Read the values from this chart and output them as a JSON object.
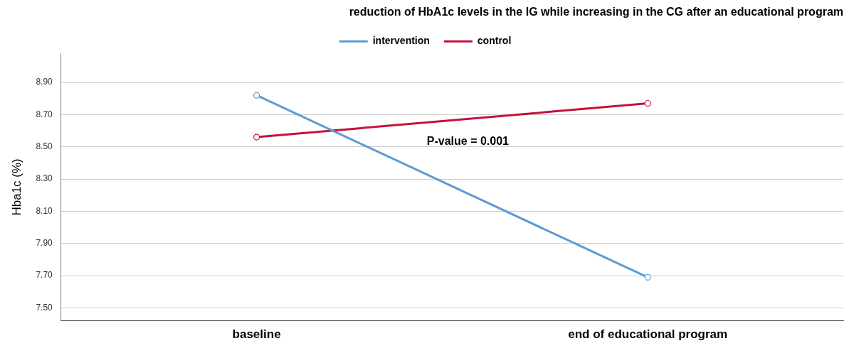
{
  "chart_data": {
    "type": "line",
    "title": "reduction of HbA1c levels in the IG while increasing in the CG after an educational program",
    "ylabel": "Hba1c (%)",
    "categories": [
      "baseline",
      "end of educational program"
    ],
    "series": [
      {
        "name": "intervention",
        "color": "#5b9bd5",
        "values": [
          8.82,
          7.69
        ]
      },
      {
        "name": "control",
        "color": "#c8103c",
        "values": [
          8.56,
          8.77
        ]
      }
    ],
    "ylim": [
      7.42,
      9.08
    ],
    "yticks": [
      {
        "value": 7.5,
        "label": "7.50"
      },
      {
        "value": 7.7,
        "label": "7.70"
      },
      {
        "value": 7.9,
        "label": "7.90"
      },
      {
        "value": 8.1,
        "label": "8.10"
      },
      {
        "value": 8.3,
        "label": "8.30"
      },
      {
        "value": 8.5,
        "label": "8.50"
      },
      {
        "value": 8.7,
        "label": "8.70"
      },
      {
        "value": 8.9,
        "label": "8.90"
      }
    ],
    "grid": "y",
    "legend": "top",
    "marker": "circle",
    "line_style": "solid",
    "annotations": [
      "P-value = 0.001"
    ]
  }
}
